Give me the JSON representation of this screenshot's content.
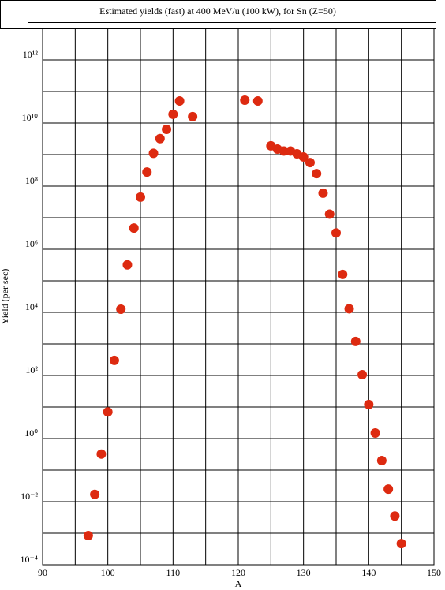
{
  "chart_data": {
    "type": "scatter",
    "title": "Estimated yields (fast) at 400 MeV/u (100 kW), for Sn (Z=50)",
    "x_label": "A",
    "y_label": "Yield (per sec)",
    "log_y": true,
    "grid": true,
    "xlim": [
      90,
      150
    ],
    "xticks": [
      90,
      100,
      110,
      120,
      130,
      140,
      150
    ],
    "xminor": [
      95,
      105,
      115,
      125,
      135,
      145
    ],
    "ylim": [
      0.0001,
      10000000000000
    ],
    "yticks": [
      {
        "value": 0.0001,
        "label": "10⁻⁴"
      },
      {
        "value": 0.01,
        "label": "10⁻²"
      },
      {
        "value": 1,
        "label": "10⁰"
      },
      {
        "value": 100,
        "label": "10²"
      },
      {
        "value": 10000,
        "label": "10⁴"
      },
      {
        "value": 1000000,
        "label": "10⁶"
      },
      {
        "value": 100000000,
        "label": "10⁸"
      },
      {
        "value": 10000000000,
        "label": "10¹⁰"
      },
      {
        "value": 1000000000000,
        "label": "10¹²"
      }
    ],
    "yminor": [
      0.001,
      0.1,
      10,
      1000,
      100000,
      10000000,
      1000000000,
      100000000000,
      10000000000000
    ],
    "series": [
      {
        "color": "#dd2a10",
        "x": [
          97,
          98,
          99,
          100,
          101,
          102,
          103,
          104,
          105,
          106,
          107,
          108,
          109,
          110,
          111,
          113,
          121,
          123,
          125,
          126,
          127,
          128,
          129,
          130,
          131,
          132,
          133,
          134,
          135,
          136,
          137,
          138,
          139,
          140,
          141,
          142,
          143,
          144,
          145
        ],
        "values": [
          0.00084,
          0.017,
          0.32,
          7,
          300,
          12600,
          320000,
          4700000,
          45000000,
          280000000,
          1100000000,
          3200000000,
          6300000000,
          19000000000,
          50000000000,
          16000000000,
          53000000000,
          50000000000,
          1900000000,
          1500000000,
          1300000000,
          1300000000,
          1060000000,
          840000000,
          560000000,
          250000000,
          60000000,
          13000000,
          3300000,
          160000,
          13000,
          1200,
          106,
          12,
          1.5,
          0.2,
          0.025,
          0.0035,
          0.00047
        ]
      }
    ]
  }
}
